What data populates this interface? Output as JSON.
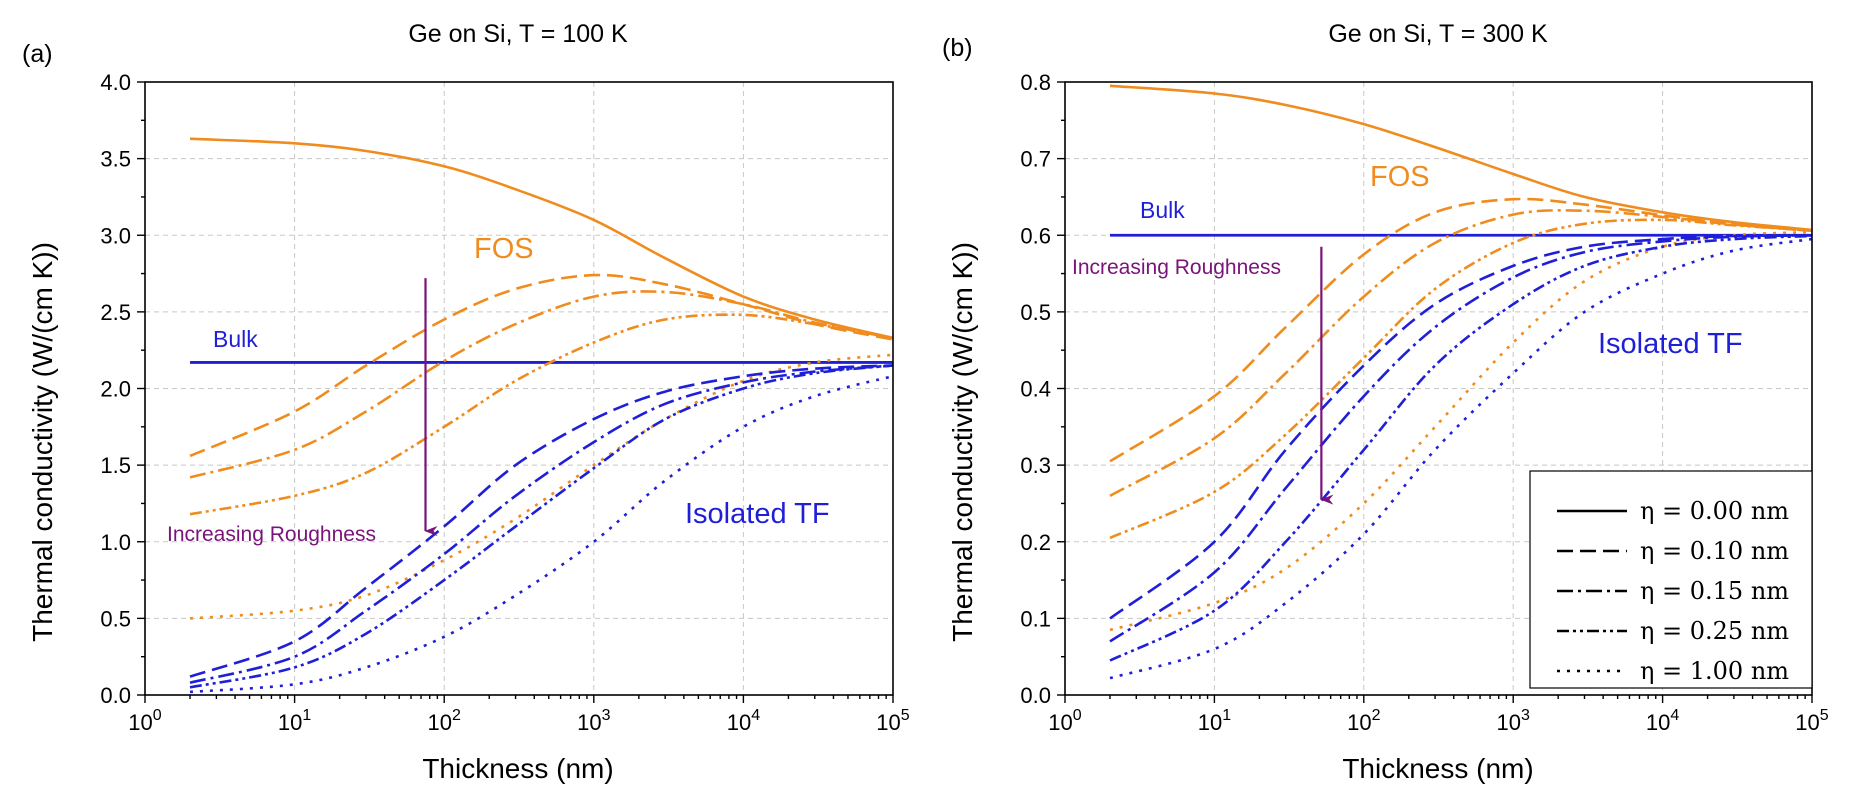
{
  "figure": {
    "legend": {
      "placement": "bottom-right of panel (b)",
      "entries": [
        {
          "label": "η = 0.00 nm",
          "style": "solid"
        },
        {
          "label": "η = 0.10 nm",
          "style": "dash"
        },
        {
          "label": "η = 0.15 nm",
          "style": "dashdot"
        },
        {
          "label": "η = 0.25 nm",
          "style": "dashdotdot"
        },
        {
          "label": "η = 1.00 nm",
          "style": "dot"
        }
      ]
    }
  },
  "chart_data": [
    {
      "type": "line",
      "panel": "(a)",
      "title": "Ge on Si, T = 100 K",
      "xlabel": "Thickness (nm)",
      "ylabel": "Thermal conductivity (W/(cm K))",
      "xscale": "log",
      "xlim": [
        1,
        100000
      ],
      "ylim": [
        0,
        4
      ],
      "xticks": [
        "10^0",
        "10^1",
        "10^2",
        "10^3",
        "10^4",
        "10^5"
      ],
      "yticks": [
        "0.0",
        "0.5",
        "1.0",
        "1.5",
        "2.0",
        "2.5",
        "3.0",
        "3.5",
        "4.0"
      ],
      "grid": true,
      "colors": {
        "FOS": "#f08c1e",
        "Isolated TF": "#1f1fd8",
        "Bulk": "#1f1fd8",
        "arrow": "#7a137a"
      },
      "annotations": [
        {
          "text": "FOS",
          "color": "#f08c1e"
        },
        {
          "text": "Bulk",
          "color": "#1f1fd8"
        },
        {
          "text": "Isolated TF",
          "color": "#1f1fd8"
        },
        {
          "text": "Increasing Roughness",
          "color": "#7a137a"
        }
      ],
      "arrow": {
        "x": 75,
        "y_from": 2.72,
        "y_to": 1.07
      },
      "bulk": {
        "x": [
          2,
          100000
        ],
        "y": 2.17
      },
      "series": [
        {
          "group": "FOS",
          "eta": 0.0,
          "style": "solid",
          "x": [
            2,
            10,
            30,
            100,
            300,
            1000,
            3000,
            10000,
            30000,
            100000
          ],
          "y": [
            3.63,
            3.6,
            3.55,
            3.45,
            3.3,
            3.1,
            2.85,
            2.6,
            2.45,
            2.33
          ]
        },
        {
          "group": "FOS",
          "eta": 0.1,
          "style": "dash",
          "x": [
            2,
            10,
            30,
            100,
            300,
            1000,
            3000,
            10000,
            30000,
            100000
          ],
          "y": [
            1.56,
            1.85,
            2.15,
            2.45,
            2.65,
            2.74,
            2.68,
            2.55,
            2.42,
            2.32
          ]
        },
        {
          "group": "FOS",
          "eta": 0.15,
          "style": "dashdot",
          "x": [
            2,
            10,
            30,
            100,
            300,
            1000,
            3000,
            10000,
            30000,
            100000
          ],
          "y": [
            1.42,
            1.6,
            1.85,
            2.18,
            2.42,
            2.6,
            2.63,
            2.55,
            2.43,
            2.33
          ]
        },
        {
          "group": "FOS",
          "eta": 0.25,
          "style": "dashdotdot",
          "x": [
            2,
            10,
            30,
            100,
            300,
            1000,
            3000,
            10000,
            30000,
            100000
          ],
          "y": [
            1.18,
            1.3,
            1.45,
            1.75,
            2.05,
            2.3,
            2.45,
            2.48,
            2.42,
            2.33
          ]
        },
        {
          "group": "FOS",
          "eta": 1.0,
          "style": "dot",
          "x": [
            2,
            10,
            30,
            100,
            300,
            1000,
            3000,
            10000,
            30000,
            100000
          ],
          "y": [
            0.5,
            0.55,
            0.65,
            0.88,
            1.15,
            1.5,
            1.8,
            2.05,
            2.17,
            2.22
          ]
        },
        {
          "group": "Isolated TF",
          "eta": 0.1,
          "style": "dash",
          "x": [
            2,
            10,
            30,
            100,
            300,
            1000,
            3000,
            10000,
            30000,
            100000
          ],
          "y": [
            0.12,
            0.35,
            0.7,
            1.1,
            1.5,
            1.8,
            1.98,
            2.08,
            2.13,
            2.15
          ]
        },
        {
          "group": "Isolated TF",
          "eta": 0.15,
          "style": "dashdot",
          "x": [
            2,
            10,
            30,
            100,
            300,
            1000,
            3000,
            10000,
            30000,
            100000
          ],
          "y": [
            0.08,
            0.25,
            0.55,
            0.92,
            1.3,
            1.65,
            1.9,
            2.04,
            2.11,
            2.15
          ]
        },
        {
          "group": "Isolated TF",
          "eta": 0.25,
          "style": "dashdotdot",
          "x": [
            2,
            10,
            30,
            100,
            300,
            1000,
            3000,
            10000,
            30000,
            100000
          ],
          "y": [
            0.05,
            0.18,
            0.4,
            0.75,
            1.1,
            1.48,
            1.8,
            2.0,
            2.1,
            2.15
          ]
        },
        {
          "group": "Isolated TF",
          "eta": 1.0,
          "style": "dot",
          "x": [
            2,
            10,
            30,
            100,
            300,
            1000,
            3000,
            10000,
            30000,
            100000
          ],
          "y": [
            0.02,
            0.07,
            0.18,
            0.38,
            0.65,
            1.0,
            1.4,
            1.75,
            1.95,
            2.08
          ]
        }
      ]
    },
    {
      "type": "line",
      "panel": "(b)",
      "title": "Ge on Si, T = 300 K",
      "xlabel": "Thickness (nm)",
      "ylabel": "Thermal conductivity (W/(cm K))",
      "xscale": "log",
      "xlim": [
        1,
        100000
      ],
      "ylim": [
        0,
        0.8
      ],
      "xticks": [
        "10^0",
        "10^1",
        "10^2",
        "10^3",
        "10^4",
        "10^5"
      ],
      "yticks": [
        "0.0",
        "0.1",
        "0.2",
        "0.3",
        "0.4",
        "0.5",
        "0.6",
        "0.7",
        "0.8"
      ],
      "grid": true,
      "colors": {
        "FOS": "#f08c1e",
        "Isolated TF": "#1f1fd8",
        "Bulk": "#1f1fd8",
        "arrow": "#7a137a"
      },
      "annotations": [
        {
          "text": "FOS",
          "color": "#f08c1e"
        },
        {
          "text": "Bulk",
          "color": "#1f1fd8"
        },
        {
          "text": "Isolated TF",
          "color": "#1f1fd8"
        },
        {
          "text": "Increasing Roughness",
          "color": "#7a137a"
        }
      ],
      "arrow": {
        "x": 52,
        "y_from": 0.585,
        "y_to": 0.255
      },
      "bulk": {
        "x": [
          2,
          100000
        ],
        "y": 0.6
      },
      "series": [
        {
          "group": "FOS",
          "eta": 0.0,
          "style": "solid",
          "x": [
            2,
            10,
            30,
            100,
            300,
            1000,
            3000,
            10000,
            30000,
            100000
          ],
          "y": [
            0.795,
            0.785,
            0.77,
            0.745,
            0.715,
            0.68,
            0.65,
            0.63,
            0.617,
            0.607
          ]
        },
        {
          "group": "FOS",
          "eta": 0.1,
          "style": "dash",
          "x": [
            2,
            10,
            30,
            100,
            300,
            1000,
            3000,
            10000,
            30000,
            100000
          ],
          "y": [
            0.305,
            0.39,
            0.48,
            0.575,
            0.63,
            0.647,
            0.64,
            0.626,
            0.614,
            0.606
          ]
        },
        {
          "group": "FOS",
          "eta": 0.15,
          "style": "dashdot",
          "x": [
            2,
            10,
            30,
            100,
            300,
            1000,
            3000,
            10000,
            30000,
            100000
          ],
          "y": [
            0.26,
            0.335,
            0.42,
            0.52,
            0.59,
            0.627,
            0.632,
            0.624,
            0.614,
            0.606
          ]
        },
        {
          "group": "FOS",
          "eta": 0.25,
          "style": "dashdotdot",
          "x": [
            2,
            10,
            30,
            100,
            300,
            1000,
            3000,
            10000,
            30000,
            100000
          ],
          "y": [
            0.205,
            0.265,
            0.34,
            0.44,
            0.53,
            0.59,
            0.615,
            0.62,
            0.613,
            0.606
          ]
        },
        {
          "group": "FOS",
          "eta": 1.0,
          "style": "dot",
          "x": [
            2,
            10,
            30,
            100,
            300,
            1000,
            3000,
            10000,
            30000,
            100000
          ],
          "y": [
            0.085,
            0.12,
            0.165,
            0.25,
            0.35,
            0.46,
            0.54,
            0.585,
            0.6,
            0.604
          ]
        },
        {
          "group": "Isolated TF",
          "eta": 0.1,
          "style": "dash",
          "x": [
            2,
            10,
            30,
            100,
            300,
            1000,
            3000,
            10000,
            30000,
            100000
          ],
          "y": [
            0.1,
            0.2,
            0.32,
            0.43,
            0.51,
            0.56,
            0.585,
            0.595,
            0.599,
            0.6
          ]
        },
        {
          "group": "Isolated TF",
          "eta": 0.15,
          "style": "dashdot",
          "x": [
            2,
            10,
            30,
            100,
            300,
            1000,
            3000,
            10000,
            30000,
            100000
          ],
          "y": [
            0.07,
            0.16,
            0.27,
            0.39,
            0.48,
            0.545,
            0.578,
            0.592,
            0.598,
            0.6
          ]
        },
        {
          "group": "Isolated TF",
          "eta": 0.25,
          "style": "dashdotdot",
          "x": [
            2,
            10,
            30,
            100,
            300,
            1000,
            3000,
            10000,
            30000,
            100000
          ],
          "y": [
            0.045,
            0.11,
            0.2,
            0.32,
            0.43,
            0.51,
            0.56,
            0.585,
            0.595,
            0.599
          ]
        },
        {
          "group": "Isolated TF",
          "eta": 1.0,
          "style": "dot",
          "x": [
            2,
            10,
            30,
            100,
            300,
            1000,
            3000,
            10000,
            30000,
            100000
          ],
          "y": [
            0.022,
            0.06,
            0.12,
            0.21,
            0.32,
            0.42,
            0.5,
            0.55,
            0.58,
            0.595
          ]
        }
      ]
    }
  ]
}
